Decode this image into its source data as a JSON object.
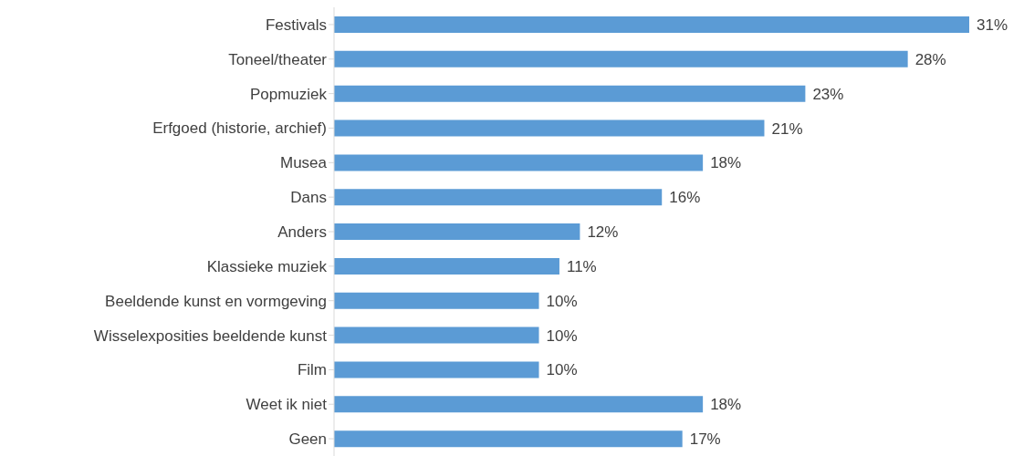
{
  "chart_data": {
    "type": "bar",
    "orientation": "horizontal",
    "categories": [
      "Festivals",
      "Toneel/theater",
      "Popmuziek",
      "Erfgoed (historie, archief)",
      "Musea",
      "Dans",
      "Anders",
      "Klassieke muziek",
      "Beeldende kunst en vormgeving",
      "Wisselexposities beeldende kunst",
      "Film",
      "Weet ik niet",
      "Geen"
    ],
    "values": [
      31,
      28,
      23,
      21,
      18,
      16,
      12,
      11,
      10,
      10,
      10,
      18,
      17
    ],
    "value_labels": [
      "31%",
      "28%",
      "23%",
      "21%",
      "18%",
      "16%",
      "12%",
      "11%",
      "10%",
      "10%",
      "10%",
      "18%",
      "17%"
    ],
    "color": "#5b9bd5",
    "grid": false,
    "legend": false
  }
}
